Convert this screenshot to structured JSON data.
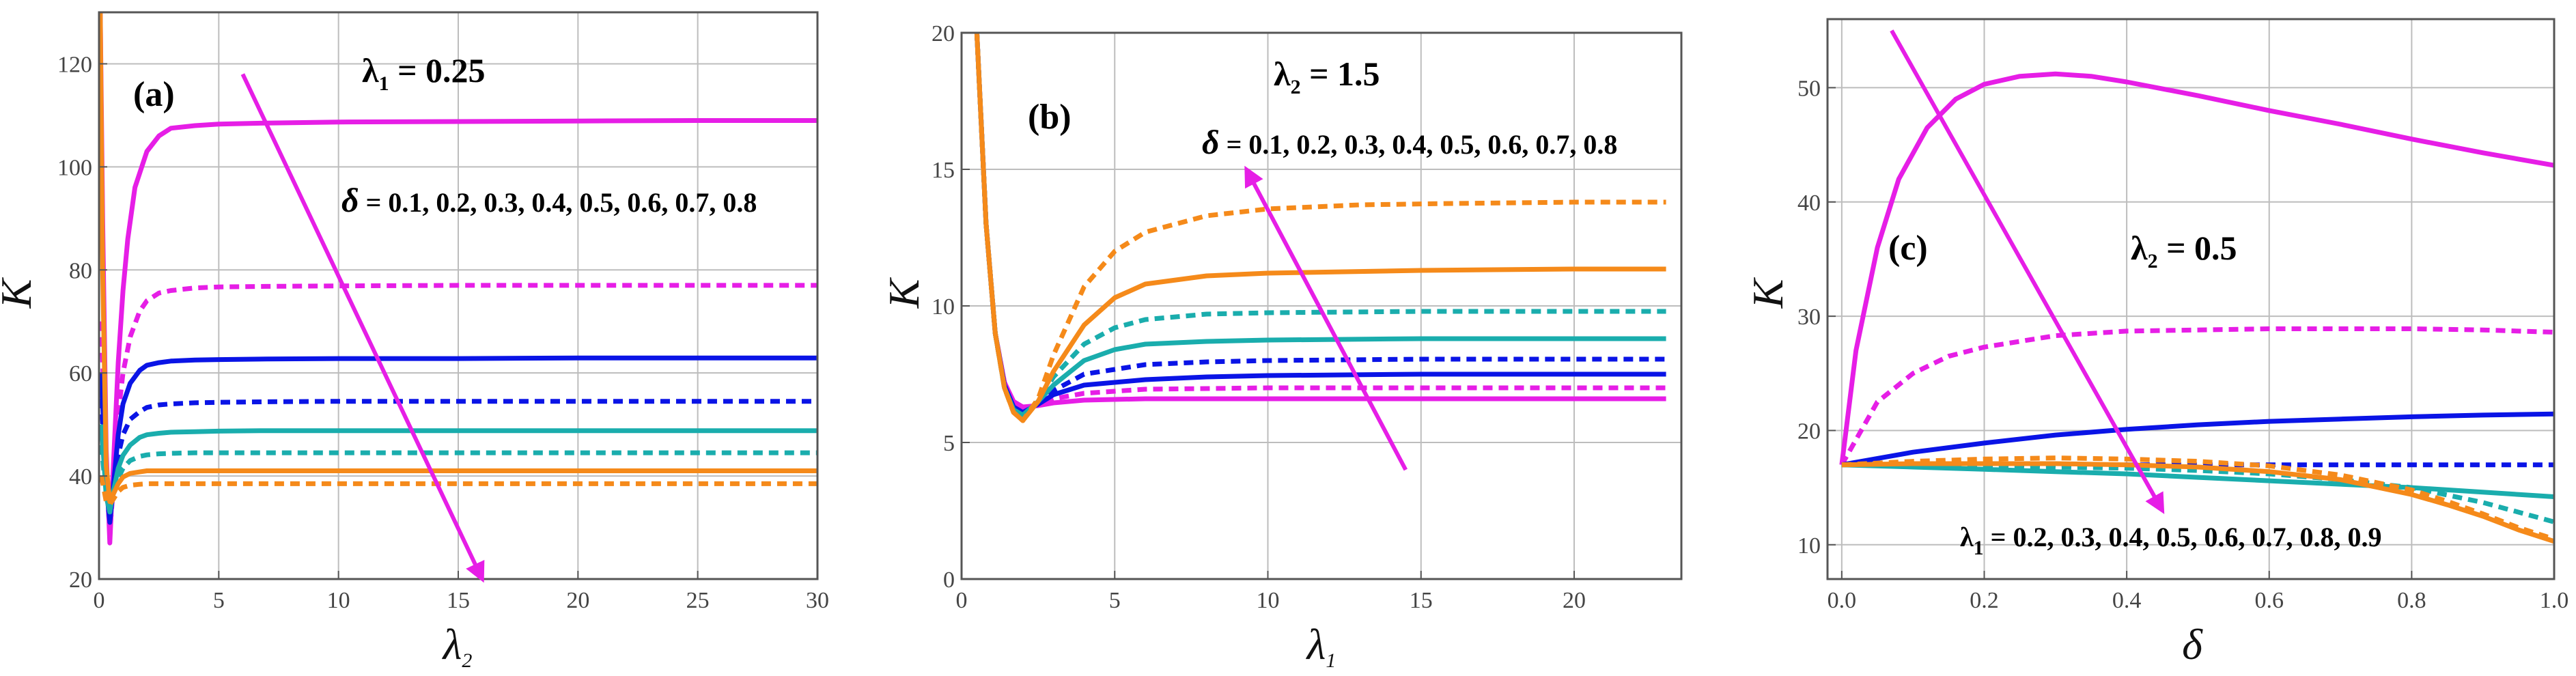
{
  "chart_data": [
    {
      "type": "line",
      "panel_label": "(a)",
      "xlabel": "λ2",
      "ylabel": "K",
      "xlim": [
        0,
        30
      ],
      "ylim": [
        20,
        130
      ],
      "xticks": [
        0,
        5,
        10,
        15,
        20,
        25,
        30
      ],
      "yticks": [
        20,
        40,
        60,
        80,
        100,
        120
      ],
      "annotations": [
        {
          "name": "fixed-parameter",
          "prefix": "λ",
          "sub": "1",
          "rest": " = 0.25"
        },
        {
          "name": "delta-values",
          "prefix": "δ",
          "rest": " = 0.1, 0.2, 0.3, 0.4, 0.5, 0.6, 0.7, 0.8"
        }
      ],
      "arrow": {
        "from": [
          6,
          118
        ],
        "to": [
          16,
          20
        ],
        "color": "#e61ee6"
      },
      "series": [
        {
          "name": "δ = 0.1",
          "color": "#e61ee6",
          "dash": false,
          "x": [
            0.05,
            0.15,
            0.3,
            0.45,
            0.6,
            0.8,
            1,
            1.2,
            1.5,
            2,
            2.5,
            3,
            4,
            5,
            7,
            10,
            15,
            20,
            25,
            30
          ],
          "y": [
            130,
            90,
            45,
            27,
            42,
            62,
            76,
            86,
            96,
            103,
            106,
            107.5,
            108,
            108.3,
            108.5,
            108.7,
            108.8,
            108.9,
            109,
            109
          ]
        },
        {
          "name": "δ = 0.2",
          "color": "#e61ee6",
          "dash": true,
          "x": [
            0.1,
            0.3,
            0.45,
            0.6,
            0.8,
            1,
            1.3,
            1.7,
            2,
            2.5,
            3,
            4,
            5,
            7,
            10,
            15,
            20,
            25,
            30
          ],
          "y": [
            70,
            40,
            29,
            38,
            52,
            60,
            67,
            72,
            74,
            75.5,
            76,
            76.5,
            76.7,
            76.8,
            76.9,
            77,
            77,
            77,
            77
          ]
        },
        {
          "name": "δ = 0.3",
          "color": "#0a14e6",
          "dash": false,
          "x": [
            0.1,
            0.3,
            0.45,
            0.6,
            0.8,
            1,
            1.3,
            1.7,
            2,
            2.5,
            3,
            4,
            5,
            7,
            10,
            15,
            20,
            25,
            30
          ],
          "y": [
            60,
            38,
            31,
            38,
            48,
            54,
            58,
            60.5,
            61.5,
            62,
            62.3,
            62.5,
            62.6,
            62.7,
            62.8,
            62.8,
            62.9,
            62.9,
            62.9
          ]
        },
        {
          "name": "δ = 0.4",
          "color": "#0a14e6",
          "dash": true,
          "x": [
            0.1,
            0.3,
            0.45,
            0.6,
            0.8,
            1,
            1.3,
            1.7,
            2,
            2.5,
            3,
            4,
            5,
            7,
            10,
            15,
            20,
            25,
            30
          ],
          "y": [
            55,
            37,
            32,
            37,
            44,
            48,
            51,
            52.5,
            53.3,
            53.8,
            54,
            54.2,
            54.3,
            54.4,
            54.5,
            54.5,
            54.5,
            54.5,
            54.5
          ]
        },
        {
          "name": "δ = 0.5",
          "color": "#1aadad",
          "dash": false,
          "x": [
            0.1,
            0.3,
            0.45,
            0.6,
            0.8,
            1,
            1.3,
            1.7,
            2,
            2.5,
            3,
            4,
            5,
            7,
            10,
            15,
            20,
            25,
            30
          ],
          "y": [
            50,
            36,
            33,
            37,
            41.5,
            44,
            46,
            47.5,
            48,
            48.3,
            48.5,
            48.6,
            48.7,
            48.8,
            48.8,
            48.8,
            48.8,
            48.8,
            48.8
          ]
        },
        {
          "name": "δ = 0.6",
          "color": "#1aadad",
          "dash": true,
          "x": [
            0.1,
            0.3,
            0.45,
            0.6,
            0.8,
            1,
            1.3,
            1.7,
            2,
            2.5,
            3,
            4,
            5,
            7,
            10,
            15,
            20,
            25,
            30
          ],
          "y": [
            46,
            36,
            34,
            36.5,
            39.5,
            41.5,
            43,
            43.8,
            44.1,
            44.3,
            44.4,
            44.5,
            44.5,
            44.5,
            44.5,
            44.5,
            44.5,
            44.5,
            44.5
          ]
        },
        {
          "name": "δ = 0.7",
          "color": "#f58a1a",
          "dash": false,
          "x": [
            0.05,
            0.15,
            0.3,
            0.45,
            0.6,
            0.8,
            1,
            1.3,
            1.7,
            2,
            2.5,
            3,
            4,
            5,
            7,
            10,
            15,
            20,
            25,
            30
          ],
          "y": [
            130,
            80,
            42,
            35,
            36.5,
            38.5,
            39.8,
            40.5,
            40.8,
            41,
            41,
            41,
            41,
            41,
            41,
            41,
            41,
            41,
            41,
            41
          ]
        },
        {
          "name": "δ = 0.8",
          "color": "#f58a1a",
          "dash": true,
          "x": [
            0.1,
            0.3,
            0.45,
            0.6,
            0.8,
            1,
            1.3,
            1.7,
            2,
            2.5,
            3,
            4,
            5,
            7,
            10,
            15,
            20,
            25,
            30
          ],
          "y": [
            40,
            35,
            34.5,
            35.5,
            37,
            37.8,
            38.2,
            38.4,
            38.5,
            38.5,
            38.5,
            38.5,
            38.5,
            38.5,
            38.5,
            38.5,
            38.5,
            38.5,
            38.5
          ]
        }
      ]
    },
    {
      "type": "line",
      "panel_label": "(b)",
      "xlabel": "λ1",
      "ylabel": "K",
      "xlim": [
        0,
        23.5
      ],
      "ylim": [
        0,
        20
      ],
      "xticks": [
        0,
        5,
        10,
        15,
        20
      ],
      "yticks": [
        0,
        5,
        10,
        15,
        20
      ],
      "annotations": [
        {
          "name": "fixed-parameter",
          "prefix": "λ",
          "sub": "2",
          "rest": " = 1.5"
        },
        {
          "name": "delta-values",
          "prefix": "δ",
          "rest": " = 0.1, 0.2, 0.3, 0.4, 0.5, 0.6, 0.7, 0.8"
        }
      ],
      "arrow": {
        "from": [
          14.5,
          4
        ],
        "to": [
          9.3,
          15
        ],
        "color": "#e61ee6"
      },
      "series": [
        {
          "name": "δ = 0.1",
          "color": "#e61ee6",
          "dash": false,
          "x": [
            0.5,
            0.8,
            1.1,
            1.4,
            1.7,
            2,
            2.5,
            3,
            4,
            6,
            10,
            15,
            20,
            23
          ],
          "y": [
            20,
            13,
            9,
            7.2,
            6.5,
            6.3,
            6.35,
            6.45,
            6.55,
            6.6,
            6.6,
            6.6,
            6.6,
            6.6
          ]
        },
        {
          "name": "δ = 0.2",
          "color": "#e61ee6",
          "dash": true,
          "x": [
            0.5,
            0.8,
            1.1,
            1.4,
            1.7,
            2,
            2.5,
            3,
            4,
            6,
            10,
            15,
            20,
            23
          ],
          "y": [
            20,
            13,
            9,
            7.2,
            6.4,
            6.2,
            6.4,
            6.6,
            6.8,
            6.95,
            7,
            7,
            7,
            7
          ]
        },
        {
          "name": "δ = 0.3",
          "color": "#0a14e6",
          "dash": false,
          "x": [
            0.5,
            0.8,
            1.1,
            1.4,
            1.7,
            2,
            2.5,
            3,
            4,
            6,
            8,
            10,
            15,
            20,
            23
          ],
          "y": [
            20,
            13,
            9,
            7.1,
            6.3,
            6.1,
            6.4,
            6.75,
            7.1,
            7.3,
            7.4,
            7.45,
            7.5,
            7.5,
            7.5
          ]
        },
        {
          "name": "δ = 0.4",
          "color": "#0a14e6",
          "dash": true,
          "x": [
            0.5,
            0.8,
            1.1,
            1.4,
            1.7,
            2,
            2.5,
            3,
            4,
            6,
            8,
            10,
            15,
            20,
            23
          ],
          "y": [
            20,
            13,
            9,
            7,
            6.2,
            6,
            6.4,
            6.9,
            7.5,
            7.85,
            7.95,
            8,
            8.05,
            8.05,
            8.05
          ]
        },
        {
          "name": "δ = 0.5",
          "color": "#1aadad",
          "dash": false,
          "x": [
            0.5,
            0.8,
            1.1,
            1.4,
            1.7,
            2,
            2.5,
            3,
            4,
            5,
            6,
            8,
            10,
            15,
            20,
            23
          ],
          "y": [
            20,
            13,
            9,
            7,
            6.2,
            6,
            6.5,
            7.1,
            8,
            8.4,
            8.6,
            8.7,
            8.75,
            8.8,
            8.8,
            8.8
          ]
        },
        {
          "name": "δ = 0.6",
          "color": "#1aadad",
          "dash": true,
          "x": [
            0.5,
            0.8,
            1.1,
            1.4,
            1.7,
            2,
            2.5,
            3,
            4,
            5,
            6,
            8,
            10,
            15,
            20,
            23
          ],
          "y": [
            20,
            13,
            9,
            7,
            6.1,
            5.9,
            6.5,
            7.4,
            8.6,
            9.2,
            9.5,
            9.7,
            9.75,
            9.8,
            9.8,
            9.8
          ]
        },
        {
          "name": "δ = 0.7",
          "color": "#f58a1a",
          "dash": false,
          "x": [
            0.5,
            0.8,
            1.1,
            1.4,
            1.7,
            2,
            2.5,
            3,
            4,
            5,
            6,
            8,
            10,
            15,
            20,
            23
          ],
          "y": [
            20,
            13,
            9,
            7,
            6.1,
            5.8,
            6.5,
            7.6,
            9.3,
            10.3,
            10.8,
            11.1,
            11.2,
            11.3,
            11.35,
            11.35
          ]
        },
        {
          "name": "δ = 0.8",
          "color": "#f58a1a",
          "dash": true,
          "x": [
            0.5,
            0.8,
            1.1,
            1.4,
            1.7,
            2,
            2.5,
            3,
            4,
            5,
            6,
            8,
            10,
            13,
            16,
            20,
            23
          ],
          "y": [
            20,
            13,
            9,
            7,
            6.1,
            5.8,
            6.6,
            8.2,
            10.7,
            12,
            12.7,
            13.3,
            13.55,
            13.7,
            13.75,
            13.8,
            13.8
          ]
        }
      ]
    },
    {
      "type": "line",
      "panel_label": "(c)",
      "xlabel": "δ",
      "ylabel": "K",
      "xlim": [
        -0.02,
        1.0
      ],
      "ylim": [
        7,
        56
      ],
      "xticks": [
        0.0,
        0.2,
        0.4,
        0.6,
        0.8,
        1.0
      ],
      "xtick_labels": [
        "0.0",
        "0.2",
        "0.4",
        "0.6",
        "0.8",
        "1.0"
      ],
      "yticks": [
        10,
        20,
        30,
        40,
        50
      ],
      "annotations": [
        {
          "name": "fixed-parameter",
          "prefix": "λ",
          "sub": "2",
          "rest": " = 0.5"
        },
        {
          "name": "lambda1-values",
          "prefix": "λ",
          "sub": "1",
          "rest": " = 0.2, 0.3, 0.4, 0.5, 0.6, 0.7, 0.8, 0.9"
        }
      ],
      "arrow": {
        "from": [
          0.07,
          55
        ],
        "to": [
          0.45,
          13
        ],
        "color": "#e61ee6"
      },
      "series": [
        {
          "name": "λ1 = 0.2",
          "color": "#e61ee6",
          "dash": false,
          "x": [
            0,
            0.02,
            0.05,
            0.08,
            0.12,
            0.16,
            0.2,
            0.25,
            0.3,
            0.35,
            0.4,
            0.5,
            0.6,
            0.7,
            0.8,
            0.9,
            1.0
          ],
          "y": [
            17,
            27,
            36,
            42,
            46.5,
            49,
            50.3,
            51,
            51.2,
            51,
            50.5,
            49.3,
            48,
            46.8,
            45.5,
            44.3,
            43.2
          ]
        },
        {
          "name": "λ1 = 0.3",
          "color": "#e61ee6",
          "dash": true,
          "x": [
            0,
            0.05,
            0.1,
            0.15,
            0.2,
            0.3,
            0.4,
            0.5,
            0.6,
            0.7,
            0.8,
            0.9,
            1.0
          ],
          "y": [
            17,
            22.5,
            25,
            26.5,
            27.3,
            28.3,
            28.7,
            28.8,
            28.9,
            28.9,
            28.9,
            28.8,
            28.6
          ]
        },
        {
          "name": "λ1 = 0.4",
          "color": "#0a14e6",
          "dash": false,
          "x": [
            0,
            0.1,
            0.2,
            0.3,
            0.4,
            0.5,
            0.6,
            0.7,
            0.8,
            0.9,
            1.0
          ],
          "y": [
            17,
            18.1,
            18.9,
            19.6,
            20.1,
            20.5,
            20.8,
            21,
            21.2,
            21.35,
            21.45
          ]
        },
        {
          "name": "λ1 = 0.5",
          "color": "#0a14e6",
          "dash": true,
          "x": [
            0,
            0.1,
            0.2,
            0.3,
            0.4,
            0.5,
            0.6,
            0.7,
            0.8,
            0.9,
            1.0
          ],
          "y": [
            17,
            17,
            17,
            17,
            17,
            17,
            17,
            17,
            17,
            17,
            17
          ]
        },
        {
          "name": "λ1 = 0.6",
          "color": "#1aadad",
          "dash": false,
          "x": [
            0,
            0.1,
            0.2,
            0.3,
            0.4,
            0.5,
            0.6,
            0.7,
            0.8,
            0.9,
            1.0
          ],
          "y": [
            17,
            16.8,
            16.6,
            16.4,
            16.2,
            15.9,
            15.6,
            15.3,
            15,
            14.6,
            14.2
          ]
        },
        {
          "name": "λ1 = 0.7",
          "color": "#1aadad",
          "dash": true,
          "x": [
            0,
            0.1,
            0.2,
            0.3,
            0.4,
            0.5,
            0.6,
            0.7,
            0.8,
            0.9,
            1.0
          ],
          "y": [
            17,
            17,
            16.9,
            16.8,
            16.7,
            16.5,
            16.2,
            15.7,
            15,
            13.7,
            12
          ]
        },
        {
          "name": "λ1 = 0.8",
          "color": "#f58a1a",
          "dash": false,
          "x": [
            0,
            0.1,
            0.2,
            0.3,
            0.4,
            0.5,
            0.6,
            0.7,
            0.8,
            0.85,
            0.9,
            0.95,
            1.0
          ],
          "y": [
            17,
            17.1,
            17.1,
            17.1,
            17,
            16.8,
            16.4,
            15.7,
            14.4,
            13.5,
            12.5,
            11.3,
            10.3
          ]
        },
        {
          "name": "λ1 = 0.9",
          "color": "#f58a1a",
          "dash": true,
          "x": [
            0,
            0.1,
            0.2,
            0.3,
            0.4,
            0.5,
            0.6,
            0.7,
            0.8,
            0.85,
            0.9,
            0.95,
            1.0
          ],
          "y": [
            17,
            17.3,
            17.5,
            17.6,
            17.5,
            17.3,
            16.9,
            16.1,
            14.8,
            13.8,
            12.7,
            11.5,
            10.5
          ]
        }
      ]
    }
  ]
}
